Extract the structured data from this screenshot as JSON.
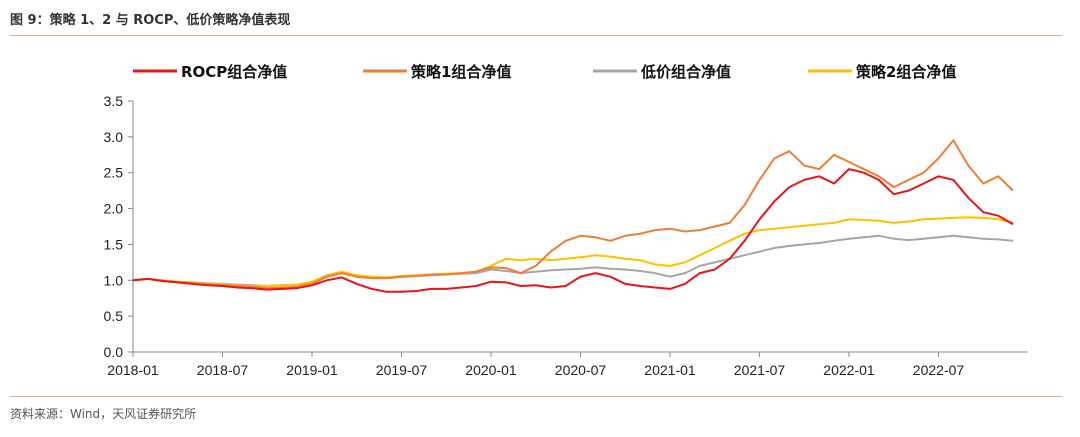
{
  "header": {
    "title": "图 9：策略 1、2 与 ROCP、低价策略净值表现"
  },
  "footer": {
    "source": "资料来源：Wind，天风证券研究所"
  },
  "chart_data": {
    "type": "line",
    "title": "",
    "xlabel": "",
    "ylabel": "",
    "ylim": [
      0.0,
      3.5
    ],
    "yticks": [
      "0.0",
      "0.5",
      "1.0",
      "1.5",
      "2.0",
      "2.5",
      "3.0",
      "3.5"
    ],
    "xticks": [
      "2018-01",
      "2018-07",
      "2019-01",
      "2019-07",
      "2020-01",
      "2020-07",
      "2021-01",
      "2021-07",
      "2022-01",
      "2022-07"
    ],
    "xlim": [
      "2018-01",
      "2022-12"
    ],
    "grid": false,
    "legend_position": "top",
    "x": [
      "2018-01",
      "2018-02",
      "2018-03",
      "2018-04",
      "2018-05",
      "2018-06",
      "2018-07",
      "2018-08",
      "2018-09",
      "2018-10",
      "2018-11",
      "2018-12",
      "2019-01",
      "2019-02",
      "2019-03",
      "2019-04",
      "2019-05",
      "2019-06",
      "2019-07",
      "2019-08",
      "2019-09",
      "2019-10",
      "2019-11",
      "2019-12",
      "2020-01",
      "2020-02",
      "2020-03",
      "2020-04",
      "2020-05",
      "2020-06",
      "2020-07",
      "2020-08",
      "2020-09",
      "2020-10",
      "2020-11",
      "2020-12",
      "2021-01",
      "2021-02",
      "2021-03",
      "2021-04",
      "2021-05",
      "2021-06",
      "2021-07",
      "2021-08",
      "2021-09",
      "2021-10",
      "2021-11",
      "2021-12",
      "2022-01",
      "2022-02",
      "2022-03",
      "2022-04",
      "2022-05",
      "2022-06",
      "2022-07",
      "2022-08",
      "2022-09",
      "2022-10",
      "2022-11",
      "2022-12"
    ],
    "series": [
      {
        "name": "ROCP组合净值",
        "color": "#e8141b",
        "values": [
          1.0,
          1.02,
          0.99,
          0.97,
          0.95,
          0.93,
          0.92,
          0.9,
          0.89,
          0.87,
          0.88,
          0.89,
          0.93,
          1.0,
          1.04,
          0.95,
          0.88,
          0.84,
          0.84,
          0.85,
          0.88,
          0.88,
          0.9,
          0.92,
          0.98,
          0.97,
          0.92,
          0.93,
          0.9,
          0.92,
          1.05,
          1.1,
          1.05,
          0.95,
          0.92,
          0.9,
          0.88,
          0.95,
          1.1,
          1.15,
          1.3,
          1.55,
          1.85,
          2.1,
          2.3,
          2.4,
          2.45,
          2.35,
          2.55,
          2.5,
          2.4,
          2.2,
          2.25,
          2.35,
          2.45,
          2.4,
          2.15,
          1.95,
          1.9,
          1.78
        ]
      },
      {
        "name": "策略1组合净值",
        "color": "#ee7e33",
        "values": [
          1.0,
          1.02,
          0.99,
          0.97,
          0.96,
          0.94,
          0.93,
          0.92,
          0.91,
          0.89,
          0.9,
          0.91,
          0.95,
          1.05,
          1.1,
          1.05,
          1.03,
          1.03,
          1.05,
          1.06,
          1.08,
          1.08,
          1.1,
          1.12,
          1.18,
          1.17,
          1.1,
          1.2,
          1.4,
          1.55,
          1.62,
          1.6,
          1.55,
          1.62,
          1.65,
          1.7,
          1.72,
          1.68,
          1.7,
          1.75,
          1.8,
          2.05,
          2.4,
          2.7,
          2.8,
          2.6,
          2.55,
          2.75,
          2.65,
          2.55,
          2.45,
          2.3,
          2.4,
          2.5,
          2.7,
          2.95,
          2.6,
          2.35,
          2.45,
          2.25
        ]
      },
      {
        "name": "低价组合净值",
        "color": "#a5a5a5",
        "values": [
          1.0,
          1.02,
          0.99,
          0.98,
          0.97,
          0.96,
          0.95,
          0.94,
          0.93,
          0.92,
          0.93,
          0.94,
          0.97,
          1.07,
          1.1,
          1.05,
          1.03,
          1.03,
          1.05,
          1.06,
          1.07,
          1.08,
          1.09,
          1.1,
          1.15,
          1.13,
          1.1,
          1.12,
          1.14,
          1.15,
          1.16,
          1.18,
          1.16,
          1.15,
          1.13,
          1.1,
          1.05,
          1.1,
          1.2,
          1.25,
          1.3,
          1.35,
          1.4,
          1.45,
          1.48,
          1.5,
          1.52,
          1.55,
          1.58,
          1.6,
          1.62,
          1.58,
          1.56,
          1.58,
          1.6,
          1.62,
          1.6,
          1.58,
          1.57,
          1.55
        ]
      },
      {
        "name": "策略2组合净值",
        "color": "#ffc000",
        "values": [
          1.0,
          1.02,
          1.0,
          0.98,
          0.97,
          0.95,
          0.94,
          0.93,
          0.92,
          0.92,
          0.93,
          0.94,
          0.98,
          1.07,
          1.12,
          1.07,
          1.05,
          1.04,
          1.06,
          1.07,
          1.08,
          1.09,
          1.1,
          1.12,
          1.2,
          1.3,
          1.28,
          1.3,
          1.28,
          1.3,
          1.32,
          1.35,
          1.33,
          1.3,
          1.28,
          1.22,
          1.2,
          1.25,
          1.35,
          1.45,
          1.55,
          1.65,
          1.7,
          1.72,
          1.74,
          1.76,
          1.78,
          1.8,
          1.85,
          1.84,
          1.83,
          1.8,
          1.82,
          1.85,
          1.86,
          1.87,
          1.88,
          1.87,
          1.85,
          1.8
        ]
      }
    ]
  }
}
